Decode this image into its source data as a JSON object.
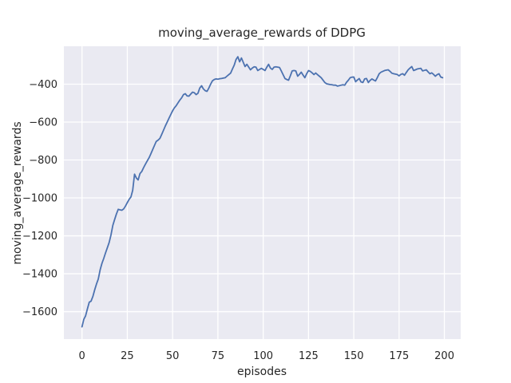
{
  "figure": {
    "title": "moving_average_rewards of DDPG",
    "xlabel": "episodes",
    "ylabel": "moving_average_rewards"
  },
  "chart_data": {
    "type": "line",
    "title": "moving_average_rewards of DDPG",
    "xlabel": "episodes",
    "ylabel": "moving_average_rewards",
    "xlim": [
      -10,
      209
    ],
    "ylim": [
      -1745,
      -200
    ],
    "xticks": [
      0,
      25,
      50,
      75,
      100,
      125,
      150,
      175,
      200
    ],
    "yticks": [
      -400,
      -600,
      -800,
      -1000,
      -1200,
      -1400,
      -1600
    ],
    "grid": true,
    "legend_position": "none",
    "plot_bg_color": "#eaeaf2",
    "grid_color": "#ffffff",
    "line_color": "#4c72b0",
    "series": [
      {
        "name": "moving_average_rewards",
        "x_start": 0,
        "x_step": 1,
        "values": [
          -1680,
          -1640,
          -1622,
          -1585,
          -1550,
          -1545,
          -1520,
          -1485,
          -1455,
          -1428,
          -1380,
          -1345,
          -1320,
          -1290,
          -1262,
          -1235,
          -1195,
          -1145,
          -1115,
          -1085,
          -1060,
          -1063,
          -1065,
          -1058,
          -1043,
          -1025,
          -1008,
          -995,
          -960,
          -875,
          -895,
          -905,
          -872,
          -860,
          -840,
          -822,
          -805,
          -788,
          -768,
          -745,
          -723,
          -702,
          -695,
          -686,
          -665,
          -643,
          -620,
          -600,
          -580,
          -560,
          -540,
          -525,
          -513,
          -498,
          -484,
          -472,
          -455,
          -450,
          -462,
          -463,
          -452,
          -442,
          -445,
          -455,
          -448,
          -420,
          -408,
          -425,
          -434,
          -438,
          -420,
          -400,
          -382,
          -375,
          -372,
          -374,
          -371,
          -370,
          -368,
          -366,
          -358,
          -350,
          -342,
          -320,
          -300,
          -270,
          -255,
          -282,
          -262,
          -285,
          -307,
          -295,
          -310,
          -324,
          -315,
          -308,
          -310,
          -328,
          -322,
          -316,
          -322,
          -328,
          -310,
          -295,
          -315,
          -322,
          -310,
          -308,
          -310,
          -312,
          -330,
          -350,
          -370,
          -375,
          -379,
          -355,
          -330,
          -328,
          -330,
          -358,
          -348,
          -337,
          -352,
          -366,
          -345,
          -328,
          -332,
          -340,
          -349,
          -341,
          -350,
          -358,
          -366,
          -378,
          -391,
          -398,
          -400,
          -402,
          -403,
          -405,
          -405,
          -410,
          -408,
          -405,
          -403,
          -405,
          -390,
          -379,
          -366,
          -363,
          -362,
          -387,
          -378,
          -370,
          -388,
          -391,
          -372,
          -370,
          -391,
          -380,
          -372,
          -378,
          -383,
          -365,
          -345,
          -337,
          -332,
          -328,
          -326,
          -324,
          -332,
          -342,
          -345,
          -347,
          -349,
          -356,
          -348,
          -345,
          -353,
          -338,
          -324,
          -315,
          -307,
          -328,
          -324,
          -320,
          -318,
          -316,
          -330,
          -327,
          -324,
          -335,
          -345,
          -340,
          -348,
          -358,
          -350,
          -345,
          -362,
          -366
        ]
      }
    ]
  }
}
